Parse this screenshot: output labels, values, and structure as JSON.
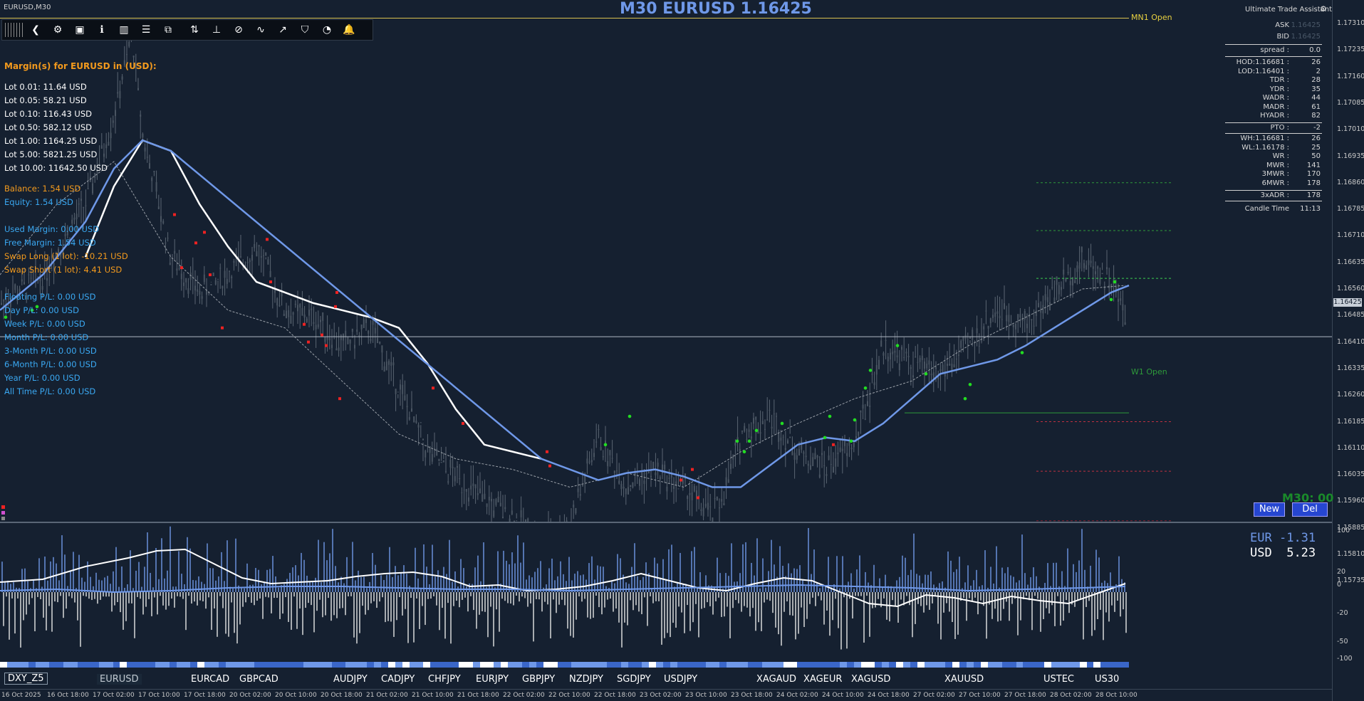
{
  "window": {
    "title": "EURUSD,M30"
  },
  "chart": {
    "title": "M30 EURUSD 1.16425",
    "mn1_label": "MN1 Open",
    "w1_label": "W1 Open",
    "watermark": "M30: 00",
    "current_price": "1.16425",
    "price_labels": [
      "1.17310",
      "1.17235",
      "1.17160",
      "1.17085",
      "1.17010",
      "1.16935",
      "1.16860",
      "1.16785",
      "1.16710",
      "1.16635",
      "1.16560",
      "1.16485",
      "1.16410",
      "1.16335",
      "1.16260",
      "1.16185",
      "1.16110",
      "1.16035",
      "1.15960",
      "1.15885",
      "1.15810",
      "1.15735"
    ],
    "colors": {
      "background": "#152030",
      "ema_white": "#ffffff",
      "ema_blue": "#6f98e8",
      "bull_dot": "#22dd22",
      "bear_dot": "#ee2222",
      "mn1": "#d8c050"
    }
  },
  "toolbar": {
    "icons": [
      "back-icon",
      "gear-icon",
      "camera-icon",
      "info-icon",
      "bar-chart-icon",
      "list-icon",
      "sliders-icon",
      "trade-icon",
      "ruler-icon",
      "clear-icon",
      "trend-up-icon",
      "trend-line-icon",
      "shield-icon",
      "pie-icon",
      "bell-icon"
    ],
    "glyphs": [
      "❮",
      "⚙",
      "▣",
      "ℹ",
      "▥",
      "☰",
      "⧉",
      "⇅",
      "⊥",
      "⊘",
      "∿",
      "↗",
      "⛉",
      "◔",
      "🔔"
    ]
  },
  "margins": {
    "header": "Margin(s) for EURUSD in (USD):",
    "lots": [
      "Lot 0.01: 11.64 USD",
      "Lot 0.05: 58.21 USD",
      "Lot 0.10: 116.43 USD",
      "Lot 0.50: 582.12 USD",
      "Lot 1.00: 1164.25 USD",
      "Lot 5.00: 5821.25 USD",
      "Lot 10.00: 11642.50 USD"
    ],
    "balance": "Balance: 1.54 USD",
    "equity": "Equity: 1.54 USD",
    "used_margin": "Used Margin: 0.00 USD",
    "free_margin": "Free Margin: 1.54 USD",
    "swap_long": "Swap Long (1 lot): -10.21 USD",
    "swap_short": "Swap Short (1 lot): 4.41 USD",
    "floating": "Floating P/L: 0.00 USD",
    "pl": [
      "Day P/L: 0.00 USD",
      "Week P/L: 0.00 USD",
      "Month P/L: 0.00 USD",
      "3-Month P/L: 0.00 USD",
      "6-Month P/L: 0.00 USD",
      "Year P/L: 0.00 USD",
      "All Time P/L: 0.00 USD"
    ]
  },
  "assistant": {
    "title": "Ultimate Trade Assistant",
    "ask_label": "ASK",
    "ask_value": "1.16425",
    "bid_label": "BID",
    "bid_value": "1.16425",
    "spread_label": "spread :",
    "spread_value": "0.0",
    "rows_a": [
      {
        "k": "HOD:1.16681 :",
        "v": "26"
      },
      {
        "k": "LOD:1.16401 :",
        "v": "2"
      },
      {
        "k": "TDR :",
        "v": "28"
      },
      {
        "k": "YDR :",
        "v": "35"
      },
      {
        "k": "WADR :",
        "v": "44"
      },
      {
        "k": "MADR :",
        "v": "61"
      },
      {
        "k": "HYADR :",
        "v": "82"
      }
    ],
    "pto_label": "PTO :",
    "pto_value": "-2",
    "rows_b": [
      {
        "k": "WH:1.16681 :",
        "v": "26"
      },
      {
        "k": "WL:1.16178 :",
        "v": "25"
      },
      {
        "k": "WR :",
        "v": "50"
      },
      {
        "k": "MWR :",
        "v": "141"
      },
      {
        "k": "3MWR :",
        "v": "170"
      },
      {
        "k": "6MWR :",
        "v": "178"
      }
    ],
    "adr_label": "3xADR :",
    "adr_value": "178",
    "candle_label": "Candle Time",
    "candle_value": "11:13"
  },
  "buttons": {
    "new": "New",
    "del": "Del"
  },
  "strength": {
    "eur_label": "EUR",
    "eur_value": "-1.31",
    "usd_label": "USD",
    "usd_value": "5.23",
    "axis_labels": [
      "100",
      "20",
      "0",
      "-20",
      "-50",
      "-100"
    ]
  },
  "symbols": [
    "DXY_Z5",
    "EURUSD",
    "EURCAD",
    "GBPCAD",
    "AUDJPY",
    "CADJPY",
    "CHFJPY",
    "EURJPY",
    "GBPJPY",
    "NZDJPY",
    "SGDJPY",
    "USDJPY",
    "XAGAUD",
    "XAGEUR",
    "XAGUSD",
    "XAUUSD",
    "USTEC",
    "US30"
  ],
  "active_symbol": "EURUSD",
  "times": [
    "16 Oct 2025",
    "16 Oct 18:00",
    "17 Oct 02:00",
    "17 Oct 10:00",
    "17 Oct 18:00",
    "20 Oct 02:00",
    "20 Oct 10:00",
    "20 Oct 18:00",
    "21 Oct 02:00",
    "21 Oct 10:00",
    "21 Oct 18:00",
    "22 Oct 02:00",
    "22 Oct 10:00",
    "22 Oct 18:00",
    "23 Oct 02:00",
    "23 Oct 10:00",
    "23 Oct 18:00",
    "24 Oct 02:00",
    "24 Oct 10:00",
    "24 Oct 18:00",
    "27 Oct 02:00",
    "27 Oct 10:00",
    "27 Oct 18:00",
    "28 Oct 02:00",
    "28 Oct 10:00"
  ]
}
